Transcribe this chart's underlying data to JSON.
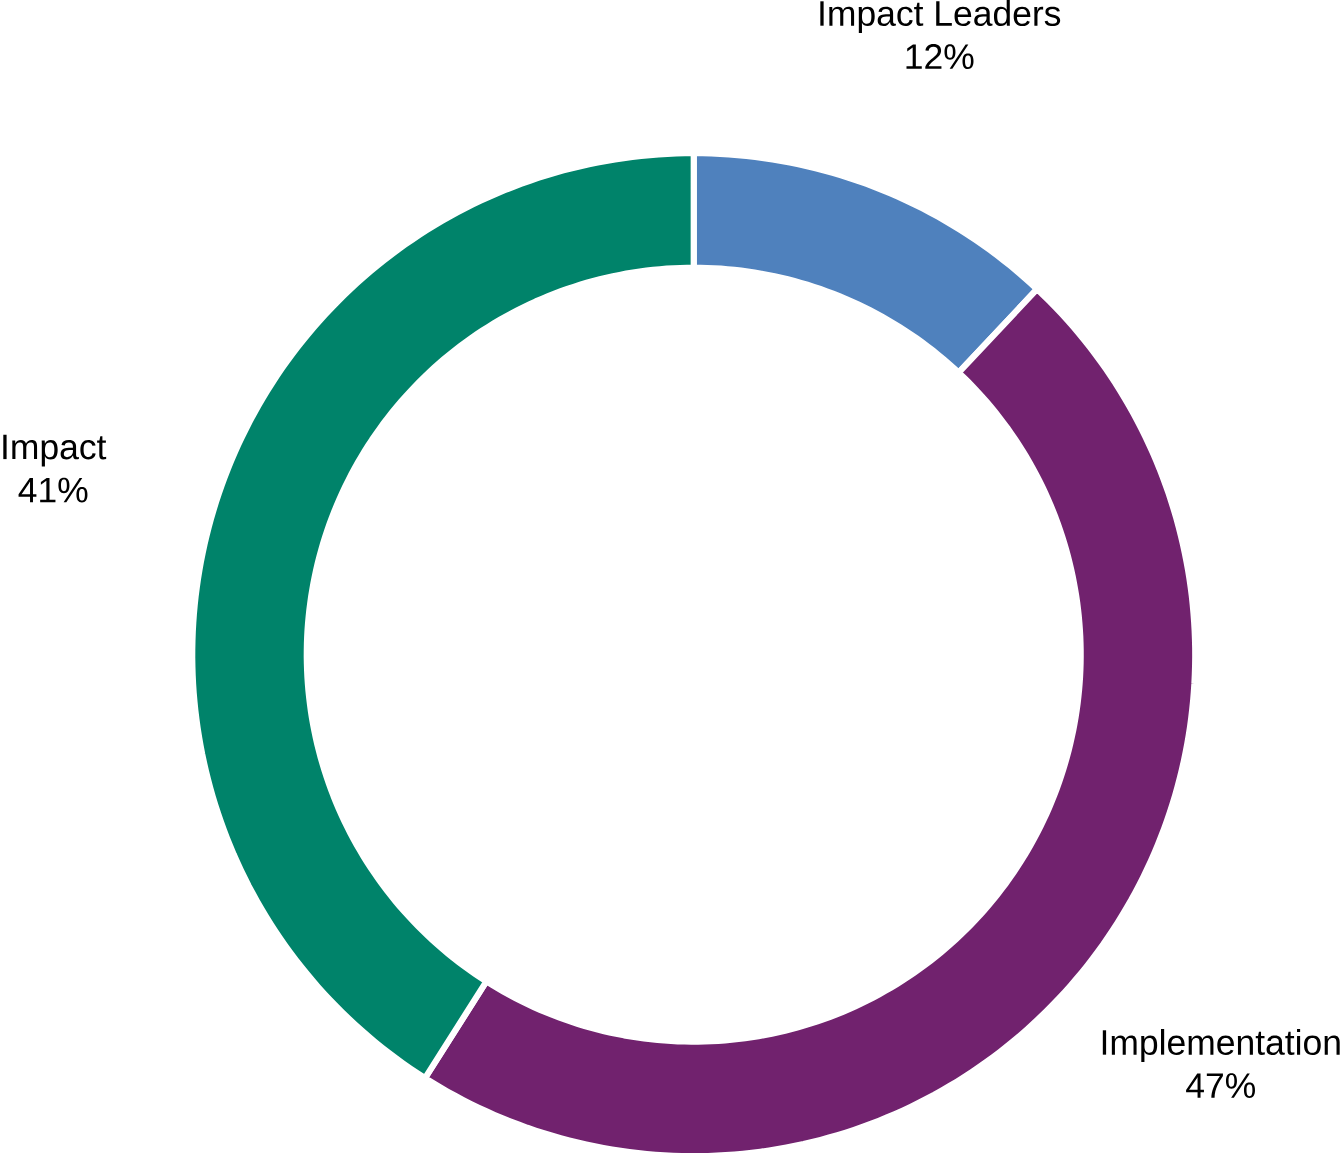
{
  "chart_data": {
    "type": "donut",
    "categories": [
      "Impact Leaders",
      "Implementation",
      "Impact"
    ],
    "values": [
      12,
      47,
      41
    ],
    "value_labels": [
      "12%",
      "47%",
      "41%"
    ],
    "colors": [
      "#4f81bd",
      "#71226e",
      "#00836a"
    ]
  }
}
